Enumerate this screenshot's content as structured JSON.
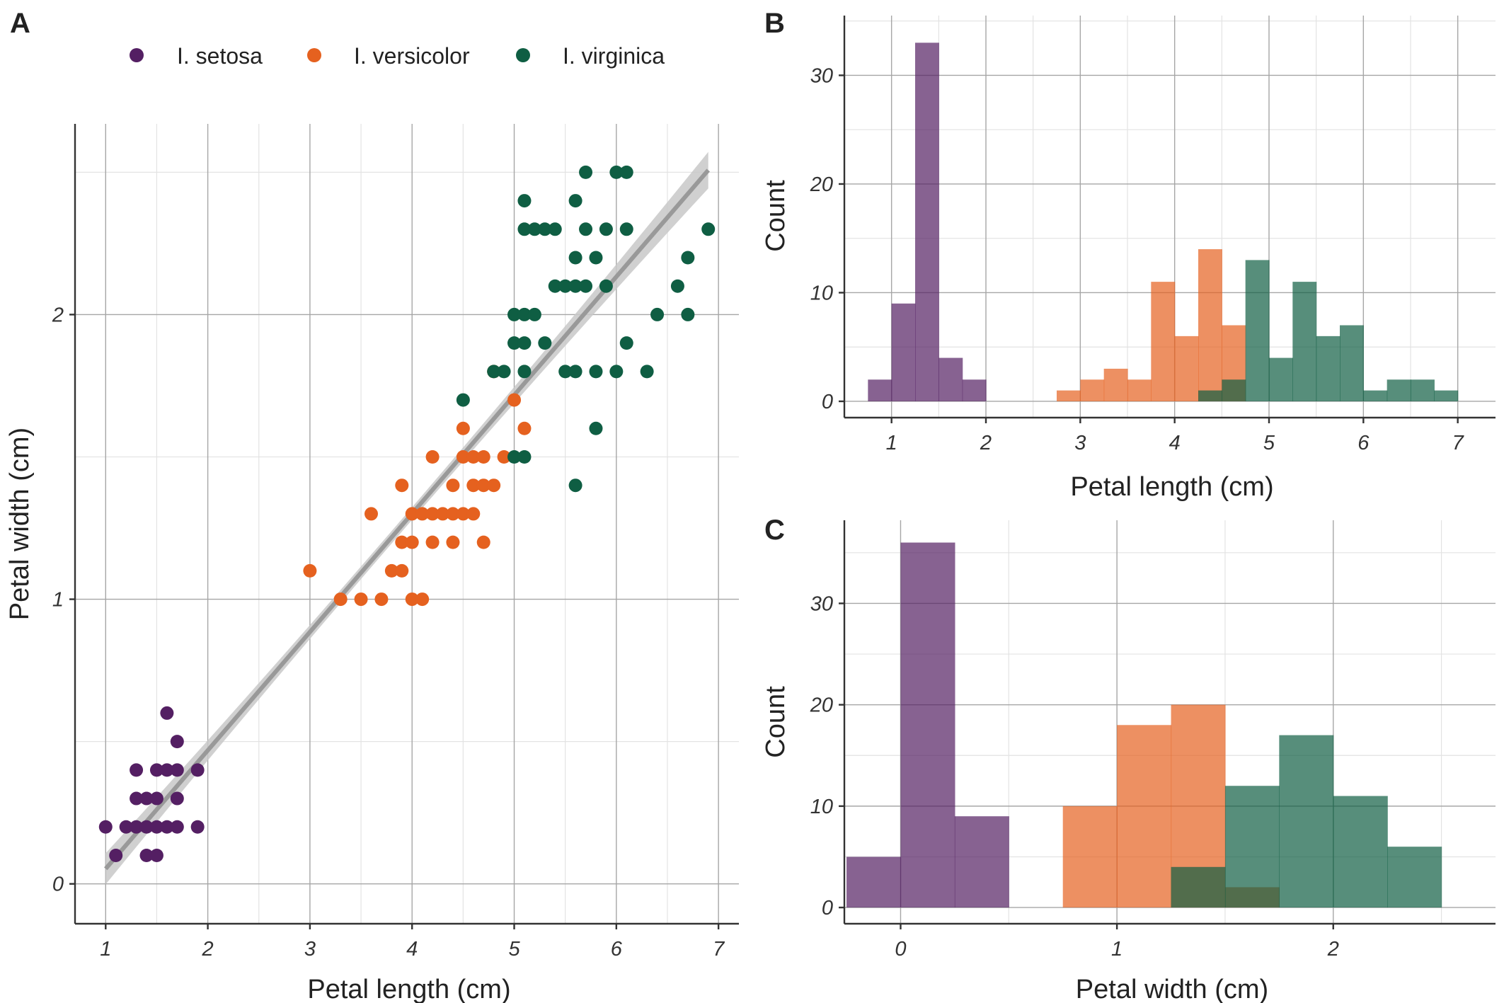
{
  "panels": {
    "a": {
      "letter": "A"
    },
    "b": {
      "letter": "B"
    },
    "c": {
      "letter": "C"
    }
  },
  "legend": {
    "items": [
      {
        "label": "I.  setosa",
        "color": "#541f63"
      },
      {
        "label": "I.  versicolor",
        "color": "#e5611f"
      },
      {
        "label": "I.  virginica",
        "color": "#0f5e43"
      }
    ]
  },
  "colors": {
    "setosa": "#541f63",
    "versicolor": "#e5611f",
    "virginica": "#0f5e43",
    "regression_line": "#999999",
    "confidence_band": "#c8c8c8"
  },
  "chart_data": [
    {
      "type": "scatter",
      "panel": "A",
      "xlabel": "Petal length (cm)",
      "ylabel": "Petal width (cm)",
      "xlim": [
        0.7,
        7.2
      ],
      "ylim": [
        -0.14,
        2.67
      ],
      "xticks": [
        1,
        2,
        3,
        4,
        5,
        6,
        7
      ],
      "yticks": [
        0,
        1,
        2
      ],
      "grid": true,
      "legend_position": "top",
      "regression": {
        "intercept": -0.363,
        "slope": 0.416,
        "x_range": [
          1.0,
          6.9
        ]
      },
      "series": [
        {
          "name": "I.  setosa",
          "points": [
            [
              1.0,
              0.2
            ],
            [
              1.1,
              0.1
            ],
            [
              1.2,
              0.2
            ],
            [
              1.3,
              0.2
            ],
            [
              1.3,
              0.3
            ],
            [
              1.3,
              0.4
            ],
            [
              1.4,
              0.2
            ],
            [
              1.4,
              0.3
            ],
            [
              1.4,
              0.1
            ],
            [
              1.5,
              0.2
            ],
            [
              1.5,
              0.4
            ],
            [
              1.5,
              0.3
            ],
            [
              1.5,
              0.1
            ],
            [
              1.6,
              0.2
            ],
            [
              1.6,
              0.4
            ],
            [
              1.6,
              0.6
            ],
            [
              1.7,
              0.2
            ],
            [
              1.7,
              0.3
            ],
            [
              1.7,
              0.4
            ],
            [
              1.7,
              0.5
            ],
            [
              1.9,
              0.2
            ],
            [
              1.9,
              0.4
            ]
          ]
        },
        {
          "name": "I.  versicolor",
          "points": [
            [
              3.0,
              1.1
            ],
            [
              3.3,
              1.0
            ],
            [
              3.5,
              1.0
            ],
            [
              3.6,
              1.3
            ],
            [
              3.7,
              1.0
            ],
            [
              3.8,
              1.1
            ],
            [
              3.9,
              1.1
            ],
            [
              3.9,
              1.2
            ],
            [
              3.9,
              1.4
            ],
            [
              4.0,
              1.0
            ],
            [
              4.0,
              1.2
            ],
            [
              4.0,
              1.3
            ],
            [
              4.1,
              1.0
            ],
            [
              4.1,
              1.3
            ],
            [
              4.2,
              1.2
            ],
            [
              4.2,
              1.3
            ],
            [
              4.2,
              1.5
            ],
            [
              4.3,
              1.3
            ],
            [
              4.4,
              1.2
            ],
            [
              4.4,
              1.3
            ],
            [
              4.4,
              1.4
            ],
            [
              4.5,
              1.3
            ],
            [
              4.5,
              1.5
            ],
            [
              4.5,
              1.6
            ],
            [
              4.6,
              1.3
            ],
            [
              4.6,
              1.4
            ],
            [
              4.6,
              1.5
            ],
            [
              4.7,
              1.2
            ],
            [
              4.7,
              1.4
            ],
            [
              4.7,
              1.5
            ],
            [
              4.8,
              1.4
            ],
            [
              4.8,
              1.8
            ],
            [
              4.9,
              1.5
            ],
            [
              5.0,
              1.7
            ],
            [
              5.1,
              1.6
            ]
          ]
        },
        {
          "name": "I.  virginica",
          "points": [
            [
              4.5,
              1.7
            ],
            [
              4.8,
              1.8
            ],
            [
              4.9,
              1.8
            ],
            [
              5.0,
              1.5
            ],
            [
              5.0,
              1.9
            ],
            [
              5.0,
              2.0
            ],
            [
              5.1,
              1.5
            ],
            [
              5.1,
              1.8
            ],
            [
              5.1,
              1.9
            ],
            [
              5.1,
              2.0
            ],
            [
              5.1,
              2.3
            ],
            [
              5.1,
              2.4
            ],
            [
              5.2,
              2.0
            ],
            [
              5.2,
              2.3
            ],
            [
              5.3,
              1.9
            ],
            [
              5.3,
              2.3
            ],
            [
              5.4,
              2.1
            ],
            [
              5.4,
              2.3
            ],
            [
              5.5,
              1.8
            ],
            [
              5.5,
              2.1
            ],
            [
              5.6,
              1.4
            ],
            [
              5.6,
              1.8
            ],
            [
              5.6,
              2.1
            ],
            [
              5.6,
              2.2
            ],
            [
              5.6,
              2.4
            ],
            [
              5.7,
              2.1
            ],
            [
              5.7,
              2.3
            ],
            [
              5.7,
              2.5
            ],
            [
              5.8,
              1.6
            ],
            [
              5.8,
              1.8
            ],
            [
              5.8,
              2.2
            ],
            [
              5.9,
              2.1
            ],
            [
              5.9,
              2.3
            ],
            [
              6.0,
              1.8
            ],
            [
              6.0,
              2.5
            ],
            [
              6.1,
              1.9
            ],
            [
              6.1,
              2.3
            ],
            [
              6.1,
              2.5
            ],
            [
              6.3,
              1.8
            ],
            [
              6.4,
              2.0
            ],
            [
              6.6,
              2.1
            ],
            [
              6.7,
              2.0
            ],
            [
              6.7,
              2.2
            ],
            [
              6.9,
              2.3
            ]
          ]
        }
      ]
    },
    {
      "type": "bar",
      "panel": "B",
      "xlabel": "Petal length (cm)",
      "ylabel": "Count",
      "xlim": [
        0.5,
        7.4
      ],
      "ylim": [
        -1.5,
        35.5
      ],
      "xticks": [
        1,
        2,
        3,
        4,
        5,
        6,
        7
      ],
      "yticks": [
        0,
        10,
        20,
        30
      ],
      "grid": true,
      "bin_width": 0.25,
      "series": [
        {
          "name": "I.  setosa",
          "bins": [
            [
              0.875,
              2
            ],
            [
              1.125,
              9
            ],
            [
              1.375,
              33
            ],
            [
              1.625,
              4
            ],
            [
              1.875,
              2
            ]
          ]
        },
        {
          "name": "I.  versicolor",
          "bins": [
            [
              2.875,
              1
            ],
            [
              3.125,
              2
            ],
            [
              3.375,
              3
            ],
            [
              3.625,
              2
            ],
            [
              3.875,
              11
            ],
            [
              4.125,
              6
            ],
            [
              4.375,
              14
            ],
            [
              4.625,
              7
            ]
          ]
        },
        {
          "name": "I.  virginica",
          "bins": [
            [
              4.375,
              1
            ],
            [
              4.625,
              2
            ],
            [
              4.875,
              13
            ],
            [
              5.125,
              4
            ],
            [
              5.375,
              11
            ],
            [
              5.625,
              6
            ],
            [
              5.875,
              7
            ],
            [
              6.125,
              1
            ],
            [
              6.375,
              2
            ],
            [
              6.625,
              2
            ],
            [
              6.875,
              1
            ]
          ]
        }
      ]
    },
    {
      "type": "bar",
      "panel": "C",
      "xlabel": "Petal width (cm)",
      "ylabel": "Count",
      "xlim": [
        -0.26,
        2.75
      ],
      "ylim": [
        -1.6,
        38.2
      ],
      "xticks": [
        0,
        1,
        2
      ],
      "yticks": [
        0,
        10,
        20,
        30
      ],
      "grid": true,
      "bin_width": 0.25,
      "series": [
        {
          "name": "I.  setosa",
          "bins": [
            [
              -0.125,
              5
            ],
            [
              0.125,
              36
            ],
            [
              0.375,
              9
            ]
          ]
        },
        {
          "name": "I.  versicolor",
          "bins": [
            [
              0.875,
              10
            ],
            [
              1.125,
              18
            ],
            [
              1.375,
              20
            ],
            [
              1.625,
              2
            ]
          ]
        },
        {
          "name": "I.  virginica",
          "bins": [
            [
              1.375,
              4
            ],
            [
              1.625,
              12
            ],
            [
              1.875,
              17
            ],
            [
              2.125,
              11
            ],
            [
              2.375,
              6
            ]
          ]
        }
      ]
    }
  ]
}
